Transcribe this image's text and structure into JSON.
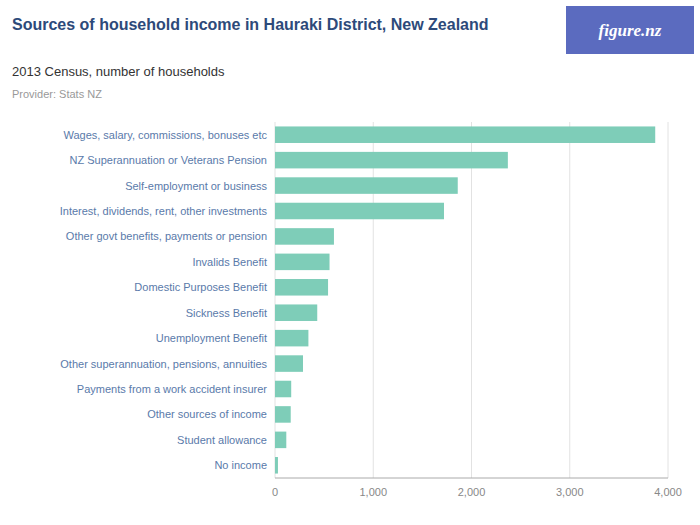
{
  "chart_data": {
    "type": "bar",
    "orientation": "horizontal",
    "title": "Sources of household income in Hauraki District, New Zealand",
    "subtitle": "2013 Census, number of households",
    "annotations": [
      "Provider: Stats NZ",
      "figure.nz"
    ],
    "categories": [
      "Wages, salary, commissions, bonuses etc",
      "NZ Superannuation or Veterans Pension",
      "Self-employment or business",
      "Interest, dividends, rent, other investments",
      "Other govt benefits, payments or pension",
      "Invalids Benefit",
      "Domestic Purposes Benefit",
      "Sickness Benefit",
      "Unemployment Benefit",
      "Other superannuation, pensions, annuities",
      "Payments from a work accident insurer",
      "Other sources of income",
      "Student allowance",
      "No income"
    ],
    "values": [
      3870,
      2370,
      1860,
      1720,
      600,
      555,
      540,
      430,
      340,
      285,
      165,
      160,
      115,
      30
    ],
    "color": "#7ECDB8",
    "xlim": [
      0,
      4000
    ],
    "xticks": [
      0,
      {
        "value": 1000,
        "label": "1,000"
      },
      {
        "value": 2000,
        "label": "2,000"
      },
      {
        "value": 3000,
        "label": "3,000"
      },
      {
        "value": 4000,
        "label": "4,000"
      }
    ],
    "grid": true
  }
}
